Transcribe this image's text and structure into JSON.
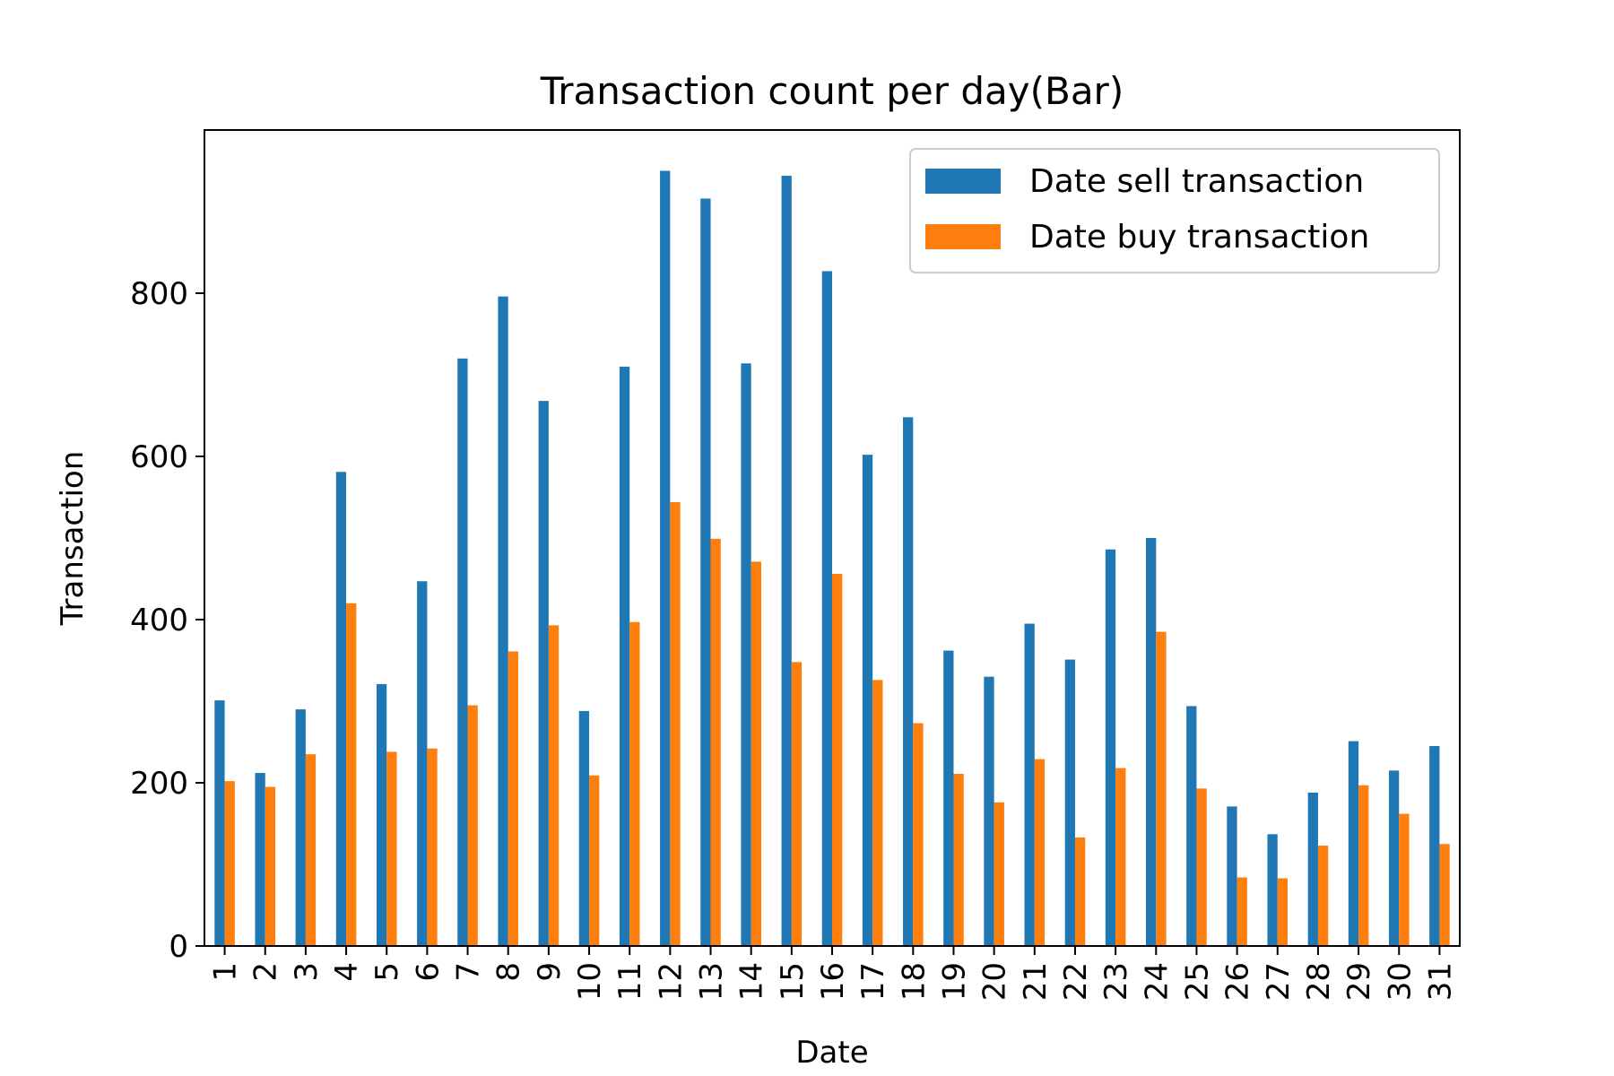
{
  "chart_data": {
    "type": "bar",
    "title": "Transaction count per day(Bar)",
    "xlabel": "Date",
    "ylabel": "Transaction",
    "ylim": [
      0,
      1000
    ],
    "yticks": [
      0,
      200,
      400,
      600,
      800
    ],
    "categories": [
      "1",
      "2",
      "3",
      "4",
      "5",
      "6",
      "7",
      "8",
      "9",
      "10",
      "11",
      "12",
      "13",
      "14",
      "15",
      "16",
      "17",
      "18",
      "19",
      "20",
      "21",
      "22",
      "23",
      "24",
      "25",
      "26",
      "27",
      "28",
      "29",
      "30",
      "31"
    ],
    "series": [
      {
        "name": "Date sell transaction",
        "color": "#1f77b4",
        "values": [
          301,
          212,
          290,
          581,
          321,
          447,
          720,
          796,
          668,
          288,
          710,
          950,
          916,
          714,
          944,
          827,
          602,
          648,
          362,
          330,
          395,
          351,
          486,
          500,
          294,
          171,
          137,
          188,
          251,
          215,
          245
        ]
      },
      {
        "name": "Date buy transaction",
        "color": "#ff7f0e",
        "values": [
          202,
          195,
          235,
          420,
          238,
          242,
          295,
          361,
          393,
          209,
          397,
          544,
          499,
          471,
          348,
          456,
          326,
          273,
          211,
          176,
          229,
          133,
          218,
          385,
          193,
          84,
          83,
          123,
          197,
          162,
          125
        ]
      }
    ],
    "legend": "top-right",
    "grid": false
  }
}
